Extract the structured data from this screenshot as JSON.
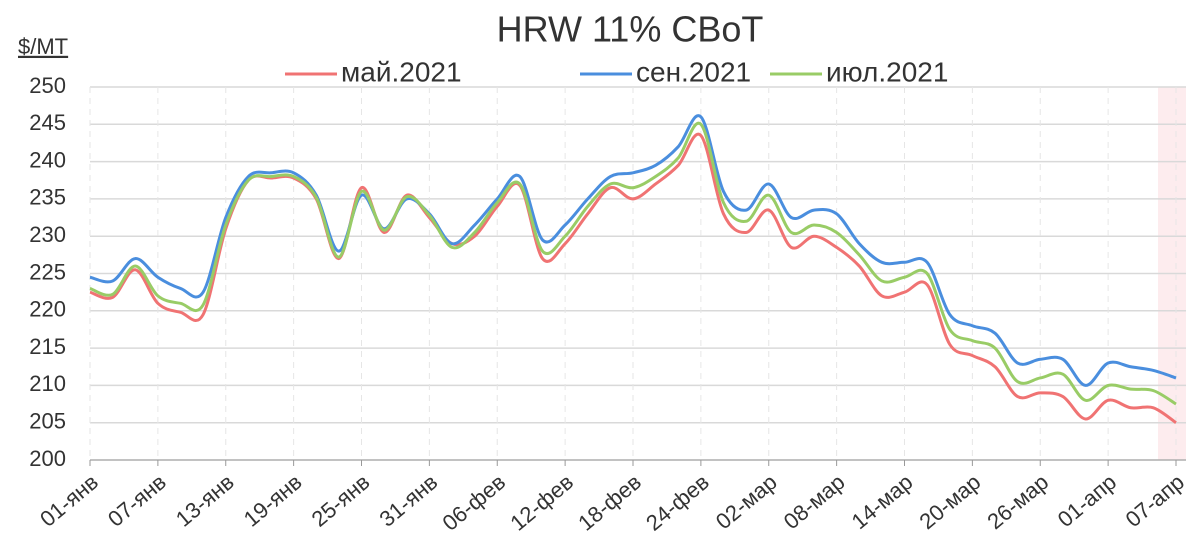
{
  "chart_data": {
    "type": "line",
    "title": "HRW 11% CBoT",
    "y_label": "$/MT",
    "categories": [
      "01-янв",
      null,
      null,
      "07-янв",
      null,
      null,
      "13-янв",
      null,
      null,
      "19-янв",
      null,
      null,
      "25-янв",
      null,
      null,
      "31-янв",
      null,
      null,
      "06-фев",
      null,
      null,
      "12-фев",
      null,
      null,
      "18-фев",
      null,
      null,
      "24-фев",
      null,
      null,
      "02-мар",
      null,
      null,
      "08-мар",
      null,
      null,
      "14-мар",
      null,
      null,
      "20-мар",
      null,
      null,
      "26-мар",
      null,
      null,
      "01-апр",
      null,
      null,
      "07-апр"
    ],
    "series": [
      {
        "name": "май.2021",
        "color": "#f07373",
        "values": [
          222.5,
          221.8,
          225.5,
          221,
          219.8,
          219.5,
          231,
          237.5,
          237.8,
          237.8,
          235,
          227,
          236.5,
          230.5,
          235.5,
          232.5,
          229,
          230,
          234,
          236.8,
          227,
          229,
          233,
          236.5,
          235,
          237,
          239.5,
          243.5,
          233,
          230.5,
          233.5,
          228.5,
          230,
          228.5,
          226,
          222,
          222.5,
          223.5,
          215.5,
          214,
          212.5,
          208.5,
          209,
          208.5,
          205.5,
          208,
          207,
          207,
          205
        ]
      },
      {
        "name": "сен.2021",
        "color": "#4a8ede",
        "values": [
          224.5,
          224,
          227,
          224.5,
          223,
          222.5,
          232.5,
          238,
          238.5,
          238.5,
          235.5,
          228,
          235.5,
          231,
          235,
          233,
          229,
          231.5,
          235,
          238,
          229.5,
          231.5,
          235,
          238,
          238.5,
          239.5,
          242,
          246,
          236,
          233.5,
          237,
          232.5,
          233.5,
          233,
          229,
          226.5,
          226.5,
          226.5,
          219.5,
          218,
          217,
          213,
          213.5,
          213.5,
          210,
          213,
          212.5,
          212,
          211
        ]
      },
      {
        "name": "июл.2021",
        "color": "#99cc66",
        "values": [
          223,
          222.2,
          226,
          222,
          221,
          220.8,
          231.5,
          237.5,
          238,
          238,
          235.2,
          227.2,
          236,
          230.8,
          235.3,
          232.8,
          228.5,
          230.5,
          234.5,
          237,
          228,
          230,
          234,
          237,
          236.5,
          238,
          240.5,
          245,
          234.5,
          232,
          235.5,
          230.5,
          231.5,
          230.5,
          227.5,
          224,
          224.5,
          225,
          217.5,
          216,
          215,
          210.5,
          211,
          211.5,
          208,
          210,
          209.5,
          209.3,
          207.5
        ]
      }
    ],
    "ylim": [
      200,
      250
    ],
    "yticks": [
      200,
      205,
      210,
      215,
      220,
      225,
      230,
      235,
      240,
      245,
      250
    ],
    "grid": true
  }
}
